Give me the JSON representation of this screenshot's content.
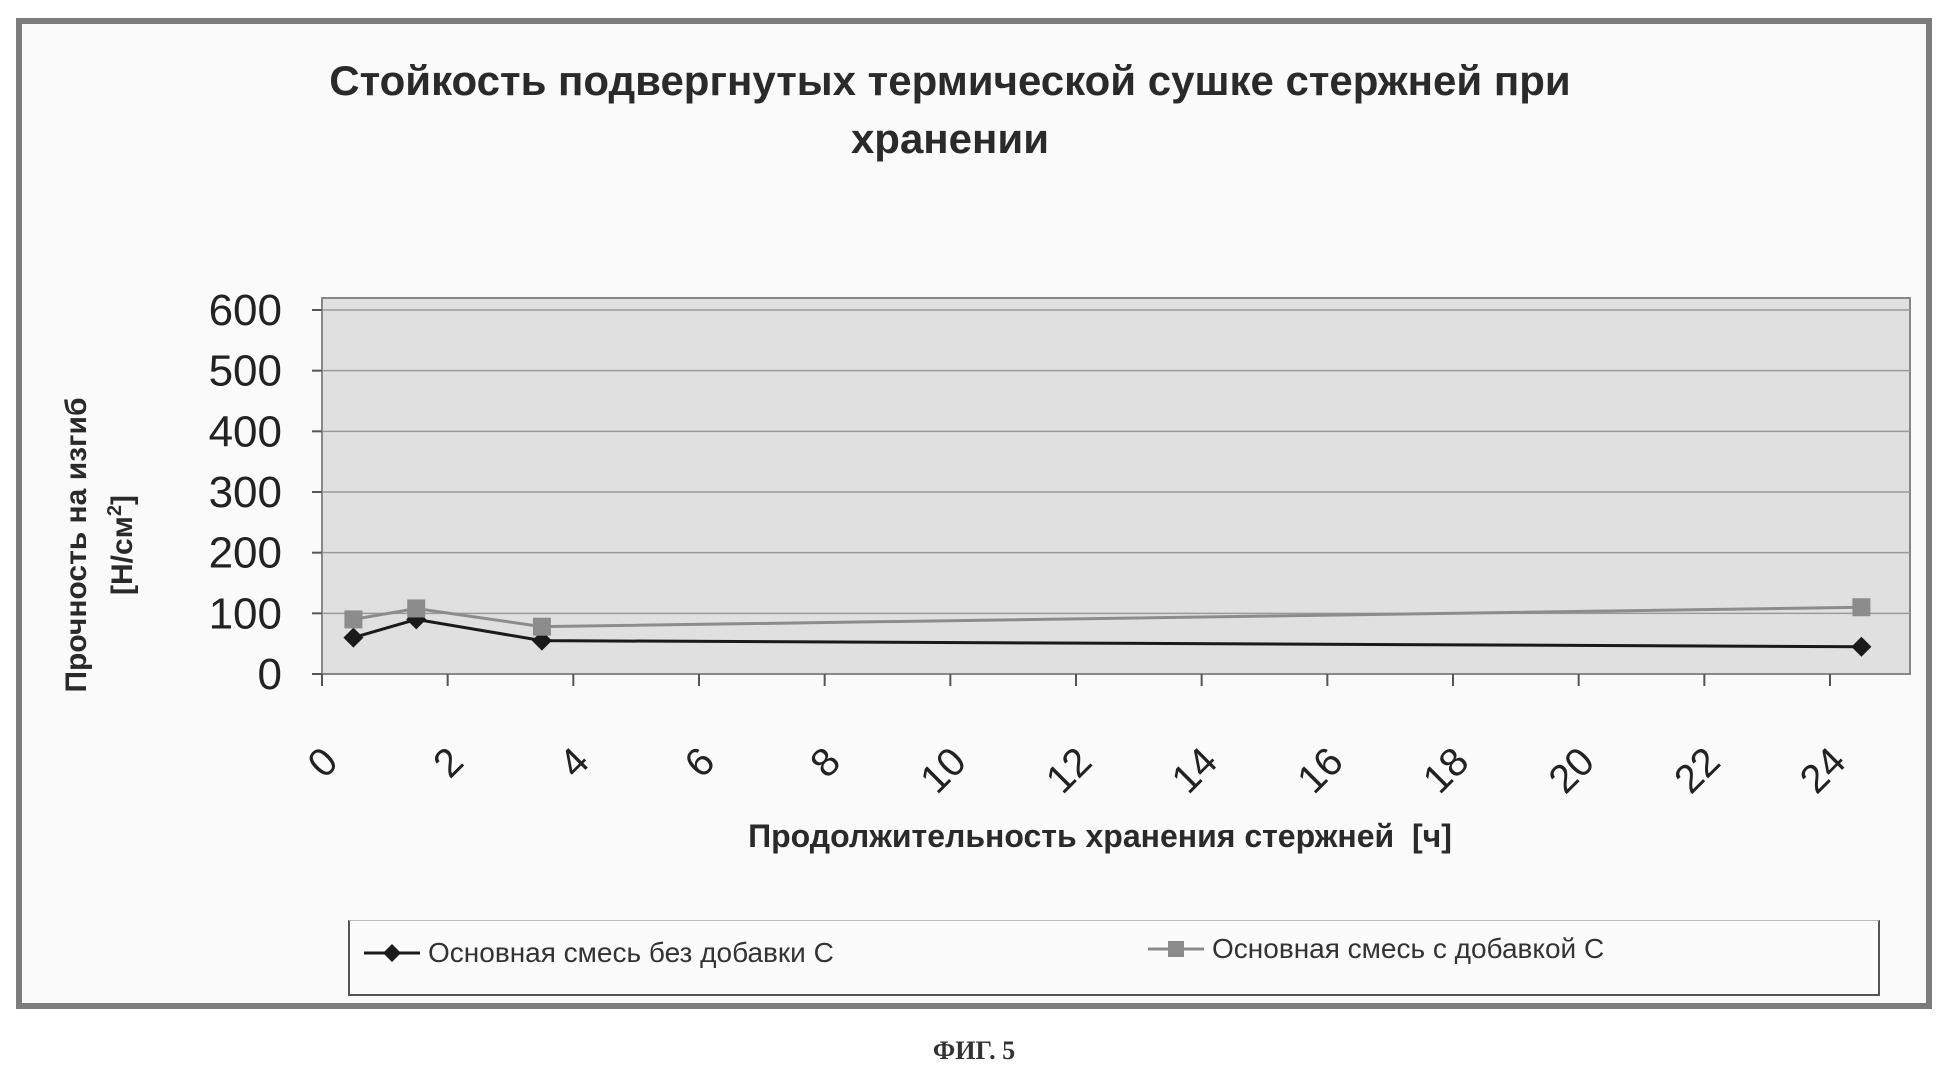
{
  "figure_caption": "ФИГ. 5",
  "chart_data": {
    "type": "line",
    "title": "Стойкость подвергнутых термической сушке стержней при\nхранении",
    "xlabel": "Продолжительность хранения стержней  [ч]",
    "ylabel_line1": "Прочность на изгиб",
    "ylabel_line2_base": "[Н/см",
    "ylabel_line2_sup": "2",
    "ylabel_line2_end": "]",
    "ylim": [
      0,
      600
    ],
    "yticks": [
      "0",
      "100",
      "200",
      "300",
      "400",
      "500",
      "600"
    ],
    "xlim": [
      0,
      24
    ],
    "xticks": [
      "0",
      "2",
      "4",
      "6",
      "8",
      "10",
      "12",
      "14",
      "16",
      "18",
      "20",
      "22",
      "24"
    ],
    "grid": true,
    "legend_position": "bottom",
    "series": [
      {
        "name": "Основная смесь без добавки С",
        "marker": "diamond",
        "color": "#1a1a1a",
        "x": [
          0.5,
          1.5,
          3.5,
          24.5
        ],
        "y": [
          60,
          90,
          55,
          45
        ]
      },
      {
        "name": "Основная смесь с добавкой С",
        "marker": "square",
        "color": "#8c8c8c",
        "x": [
          0.5,
          1.5,
          3.5,
          24.5
        ],
        "y": [
          90,
          108,
          78,
          110
        ]
      }
    ]
  }
}
